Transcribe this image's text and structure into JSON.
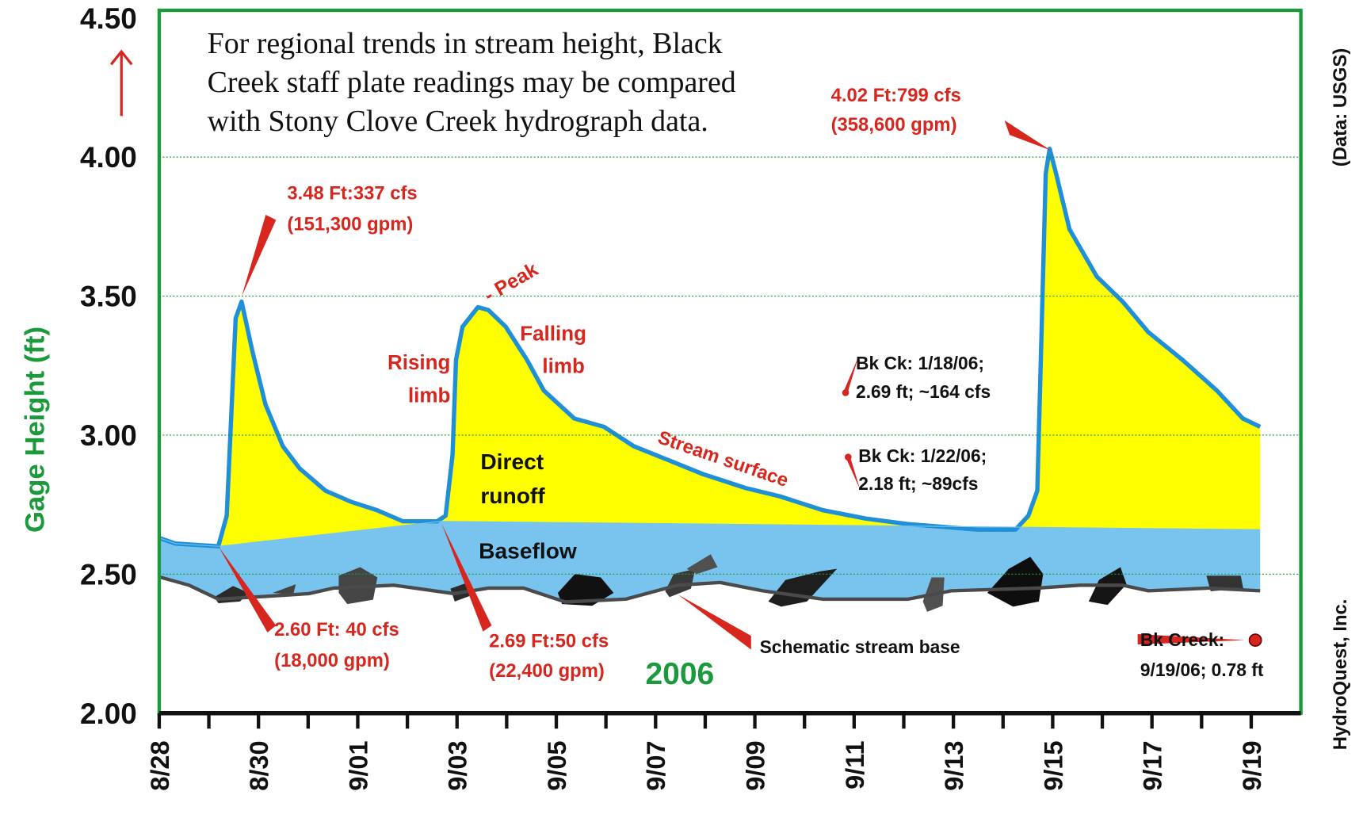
{
  "chart_data": {
    "type": "line",
    "note": [
      "For regional trends in stream height, Black",
      "Creek staff plate readings may be compared",
      "with Stony Clove Creek hydrograph data."
    ],
    "y_label": "Gage Height (ft)",
    "source": "(Data: USGS)",
    "credit": "HydroQuest, Inc.",
    "year": "2006",
    "xlim": [
      0,
      23
    ],
    "xticks": [
      {
        "value": 0,
        "label": "8/28"
      },
      {
        "value": 2,
        "label": "8/30"
      },
      {
        "value": 4,
        "label": "9/01"
      },
      {
        "value": 6,
        "label": "9/03"
      },
      {
        "value": 8,
        "label": "9/05"
      },
      {
        "value": 10,
        "label": "9/07"
      },
      {
        "value": 12,
        "label": "9/09"
      },
      {
        "value": 14,
        "label": "9/11"
      },
      {
        "value": 16,
        "label": "9/13"
      },
      {
        "value": 18,
        "label": "9/15"
      },
      {
        "value": 20,
        "label": "9/17"
      },
      {
        "value": 22,
        "label": "9/19"
      }
    ],
    "ylim": [
      2,
      4.5
    ],
    "yticks": [
      {
        "value": 2,
        "label": "2.00"
      },
      {
        "value": 2.5,
        "label": "2.50"
      },
      {
        "value": 3,
        "label": "3.00"
      },
      {
        "value": 3.5,
        "label": "3.50"
      },
      {
        "value": 4,
        "label": "4.00"
      },
      {
        "value": 4.5,
        "label": "4.50"
      }
    ],
    "grid": true,
    "runoff_color": "#ffff00",
    "series": [
      {
        "name": "Stream surface",
        "color": "#1e8fd8",
        "x": [
          0,
          0.33,
          1.19,
          1.36,
          1.54,
          1.66,
          1.88,
          2.14,
          2.49,
          2.83,
          3.35,
          3.87,
          4.39,
          4.91,
          5.6,
          5.77,
          5.91,
          5.98,
          6.11,
          6.42,
          6.63,
          6.98,
          7.41,
          7.75,
          8.36,
          8.96,
          9.56,
          10.26,
          10.95,
          11.81,
          12.5,
          13.37,
          14.23,
          15.09,
          15.79,
          16.48,
          17.25,
          17.51,
          17.69,
          17.77,
          17.86,
          17.94,
          18.07,
          18.34,
          18.89,
          19.41,
          19.93,
          20.62,
          21.31,
          21.83,
          22.18
        ],
        "values": [
          2.63,
          2.61,
          2.6,
          2.71,
          3.42,
          3.48,
          3.3,
          3.11,
          2.96,
          2.88,
          2.8,
          2.76,
          2.73,
          2.69,
          2.69,
          2.71,
          2.93,
          3.27,
          3.39,
          3.46,
          3.45,
          3.39,
          3.27,
          3.16,
          3.06,
          3.03,
          2.96,
          2.91,
          2.86,
          2.81,
          2.78,
          2.73,
          2.7,
          2.68,
          2.67,
          2.66,
          2.66,
          2.71,
          2.8,
          3.33,
          3.94,
          4.03,
          3.94,
          3.74,
          3.57,
          3.48,
          3.37,
          3.27,
          3.16,
          3.06,
          3.03
        ]
      },
      {
        "name": "Baseflow",
        "color": "#78c4ee",
        "x": [
          0,
          0.33,
          1.19,
          5.68,
          22.18
        ],
        "values": [
          2.63,
          2.61,
          2.6,
          2.69,
          2.66
        ]
      },
      {
        "name": "Schematic stream base",
        "color": "#4a4a4a",
        "x": [
          0,
          0.6,
          1.19,
          2.14,
          3.01,
          3.52,
          4.73,
          5.94,
          6.64,
          7.34,
          8.18,
          9.4,
          10.44,
          11.3,
          12.16,
          13.37,
          15.09,
          15.96,
          17.69,
          18.55,
          19.41,
          19.93,
          21.14,
          22.18
        ],
        "values": [
          2.49,
          2.46,
          2.41,
          2.42,
          2.43,
          2.45,
          2.46,
          2.43,
          2.45,
          2.45,
          2.4,
          2.41,
          2.46,
          2.47,
          2.44,
          2.41,
          2.41,
          2.44,
          2.45,
          2.46,
          2.46,
          2.44,
          2.45,
          2.44
        ]
      }
    ],
    "annotations": [
      {
        "lines": [
          "3.48 Ft:337 cfs",
          "(151,300 gpm)"
        ],
        "color": "#d7261e"
      },
      {
        "lines": [
          "4.02 Ft:799 cfs",
          "(358,600 gpm)"
        ],
        "color": "#d7261e"
      },
      {
        "lines": [
          "2.60 Ft: 40 cfs",
          "(18,000 gpm)"
        ],
        "color": "#d7261e"
      },
      {
        "lines": [
          "2.69 Ft:50 cfs",
          "(22,400 gpm)"
        ],
        "color": "#d7261e"
      },
      {
        "lines": [
          "Rising",
          "limb"
        ],
        "color": "#d7261e"
      },
      {
        "lines": [
          "Falling",
          "limb"
        ],
        "color": "#d7261e"
      },
      {
        "lines": [
          "- Peak"
        ],
        "color": "#d7261e"
      },
      {
        "lines": [
          "Direct",
          "runoff"
        ],
        "color": "#111111"
      },
      {
        "lines": [
          "Bk Ck: 1/18/06;",
          "2.69 ft; ~164 cfs"
        ],
        "color": "#111111"
      },
      {
        "lines": [
          "Bk Ck: 1/22/06;",
          "2.18 ft; ~89cfs"
        ],
        "color": "#111111"
      },
      {
        "lines": [
          "Bk Creek:",
          "9/19/06; 0.78 ft"
        ],
        "color": "#111111"
      }
    ]
  }
}
